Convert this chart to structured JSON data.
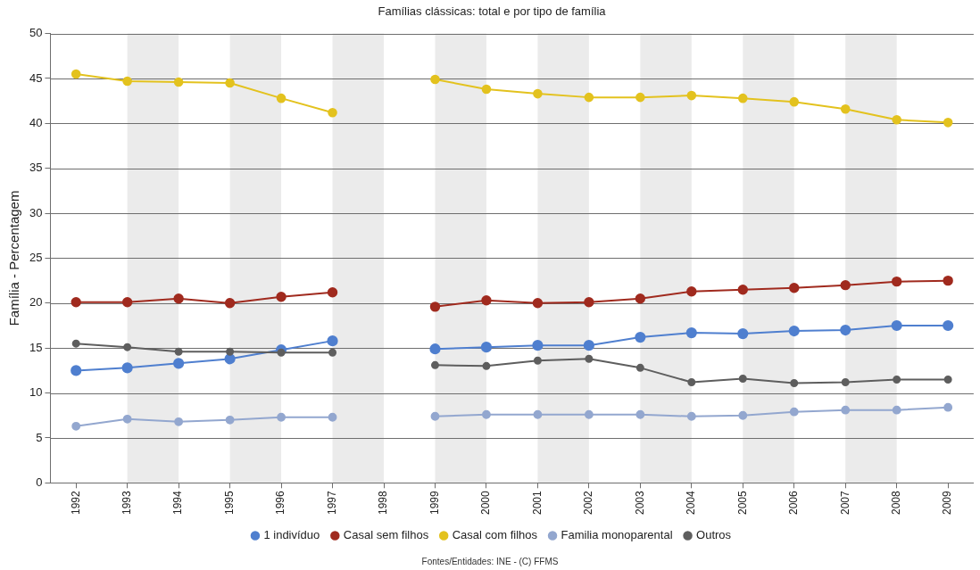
{
  "chart_data": {
    "type": "line",
    "title": "Famílias clássicas: total e por tipo de família",
    "ylabel": "Família - Percentagem",
    "categories": [
      "1992",
      "1993",
      "1994",
      "1995",
      "1996",
      "1997",
      "1998",
      "1999",
      "2000",
      "2001",
      "2002",
      "2003",
      "2004",
      "2005",
      "2006",
      "2007",
      "2008",
      "2009"
    ],
    "series": [
      {
        "name": "1 indivíduo",
        "color": "#4f7fcf",
        "values": [
          12.5,
          12.8,
          13.3,
          13.8,
          14.8,
          15.8,
          null,
          14.9,
          15.1,
          15.3,
          15.3,
          16.2,
          16.7,
          16.6,
          16.9,
          17.0,
          17.5,
          17.5
        ]
      },
      {
        "name": "Casal sem filhos",
        "color": "#a02a1e",
        "values": [
          20.1,
          20.1,
          20.5,
          20.0,
          20.7,
          21.2,
          null,
          19.6,
          20.3,
          20.0,
          20.1,
          20.5,
          21.3,
          21.5,
          21.7,
          22.0,
          22.4,
          22.5
        ]
      },
      {
        "name": "Casal com filhos",
        "color": "#e3c21e",
        "values": [
          45.5,
          44.7,
          44.6,
          44.5,
          42.8,
          41.2,
          null,
          44.9,
          43.8,
          43.3,
          42.9,
          42.9,
          43.1,
          42.8,
          42.4,
          41.6,
          40.4,
          40.1
        ]
      },
      {
        "name": "Familia monoparental",
        "color": "#93a7cf",
        "values": [
          6.3,
          7.1,
          6.8,
          7.0,
          7.3,
          7.3,
          null,
          7.4,
          7.6,
          7.6,
          7.6,
          7.6,
          7.4,
          7.5,
          7.9,
          8.1,
          8.1,
          8.4
        ]
      },
      {
        "name": "Outros",
        "color": "#5e5e5e",
        "values": [
          15.5,
          15.1,
          14.6,
          14.6,
          14.5,
          14.5,
          null,
          13.1,
          13.0,
          13.6,
          13.8,
          12.8,
          11.2,
          11.6,
          11.1,
          11.2,
          11.5,
          11.5
        ]
      }
    ],
    "ylim": [
      0,
      50
    ],
    "yticks": [
      0,
      5,
      10,
      15,
      20,
      25,
      30,
      35,
      40,
      45,
      50
    ],
    "grid": "y",
    "legend": "bottom",
    "marker": "circle",
    "line_style": "solid",
    "bands": [
      {
        "axis": "x",
        "from": "1993",
        "to": "1994",
        "color": "#ebebeb"
      },
      {
        "axis": "x",
        "from": "1995",
        "to": "1996",
        "color": "#ebebeb"
      },
      {
        "axis": "x",
        "from": "1997",
        "to": "1998",
        "color": "#ebebeb"
      },
      {
        "axis": "x",
        "from": "1999",
        "to": "2000",
        "color": "#ebebeb"
      },
      {
        "axis": "x",
        "from": "2001",
        "to": "2002",
        "color": "#ebebeb"
      },
      {
        "axis": "x",
        "from": "2003",
        "to": "2004",
        "color": "#ebebeb"
      },
      {
        "axis": "x",
        "from": "2005",
        "to": "2006",
        "color": "#ebebeb"
      },
      {
        "axis": "x",
        "from": "2007",
        "to": "2008",
        "color": "#ebebeb"
      }
    ],
    "annotations": [
      "Fontes/Entidades: INE - (C) FFMS"
    ]
  }
}
